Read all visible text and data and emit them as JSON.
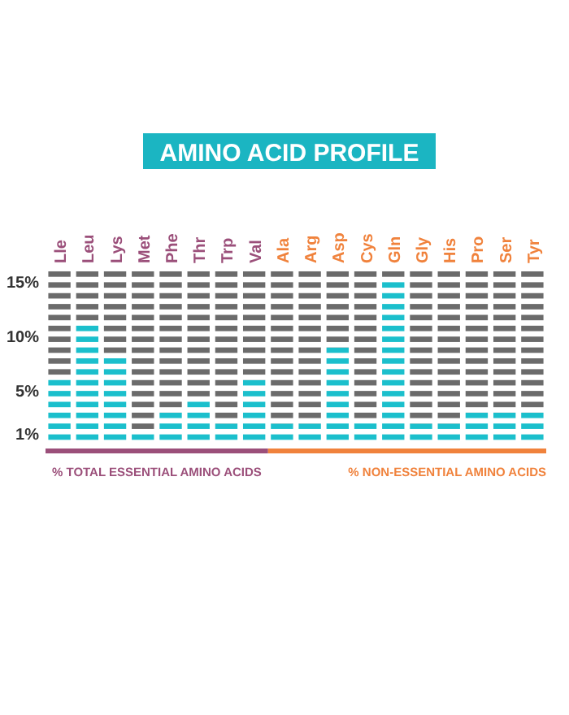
{
  "chart_data": {
    "type": "bar",
    "title": "AMINO ACID PROFILE",
    "stacked": true,
    "categories": [
      "Lle",
      "Leu",
      "Lys",
      "Met",
      "Phe",
      "Thr",
      "Trp",
      "Val",
      "Ala",
      "Arg",
      "Asp",
      "Cys",
      "Gln",
      "Gly",
      "His",
      "Pro",
      "Ser",
      "Tyr"
    ],
    "series": [
      {
        "color": "#1bbfcc",
        "values": [
          6.2,
          11.2,
          8,
          1.2,
          3,
          4.2,
          2,
          6,
          null,
          null,
          null,
          null,
          null,
          null,
          null,
          null,
          null,
          null
        ]
      },
      {
        "color": "#1bbfcc",
        "values": [
          null,
          null,
          null,
          null,
          null,
          null,
          null,
          null,
          2,
          2,
          9,
          2.2,
          15.3,
          2,
          2,
          3,
          3,
          3
        ]
      },
      {
        "color": "#6b6b6b",
        "values": [
          9.8,
          4.8,
          8,
          14.8,
          13,
          11.8,
          14,
          10,
          null,
          null,
          null,
          null,
          null,
          null,
          null,
          null,
          null,
          null
        ]
      },
      {
        "color": "#6b6b6b",
        "values": [
          null,
          null,
          null,
          null,
          null,
          null,
          null,
          null,
          14,
          14,
          7,
          13.8,
          0.7,
          14,
          14,
          13,
          13,
          13
        ]
      }
    ],
    "ylim": [
      0,
      16
    ],
    "yticks": [
      {
        "value": 1,
        "label": "1%"
      },
      {
        "value": 5,
        "label": "5%"
      },
      {
        "value": 10,
        "label": "10%"
      },
      {
        "value": 15,
        "label": "15%"
      }
    ],
    "annotations": [
      "% TOTAL ESSENTIAL AMINO ACIDS",
      "% NON-ESSENTIAL AMINO ACIDS"
    ]
  }
}
